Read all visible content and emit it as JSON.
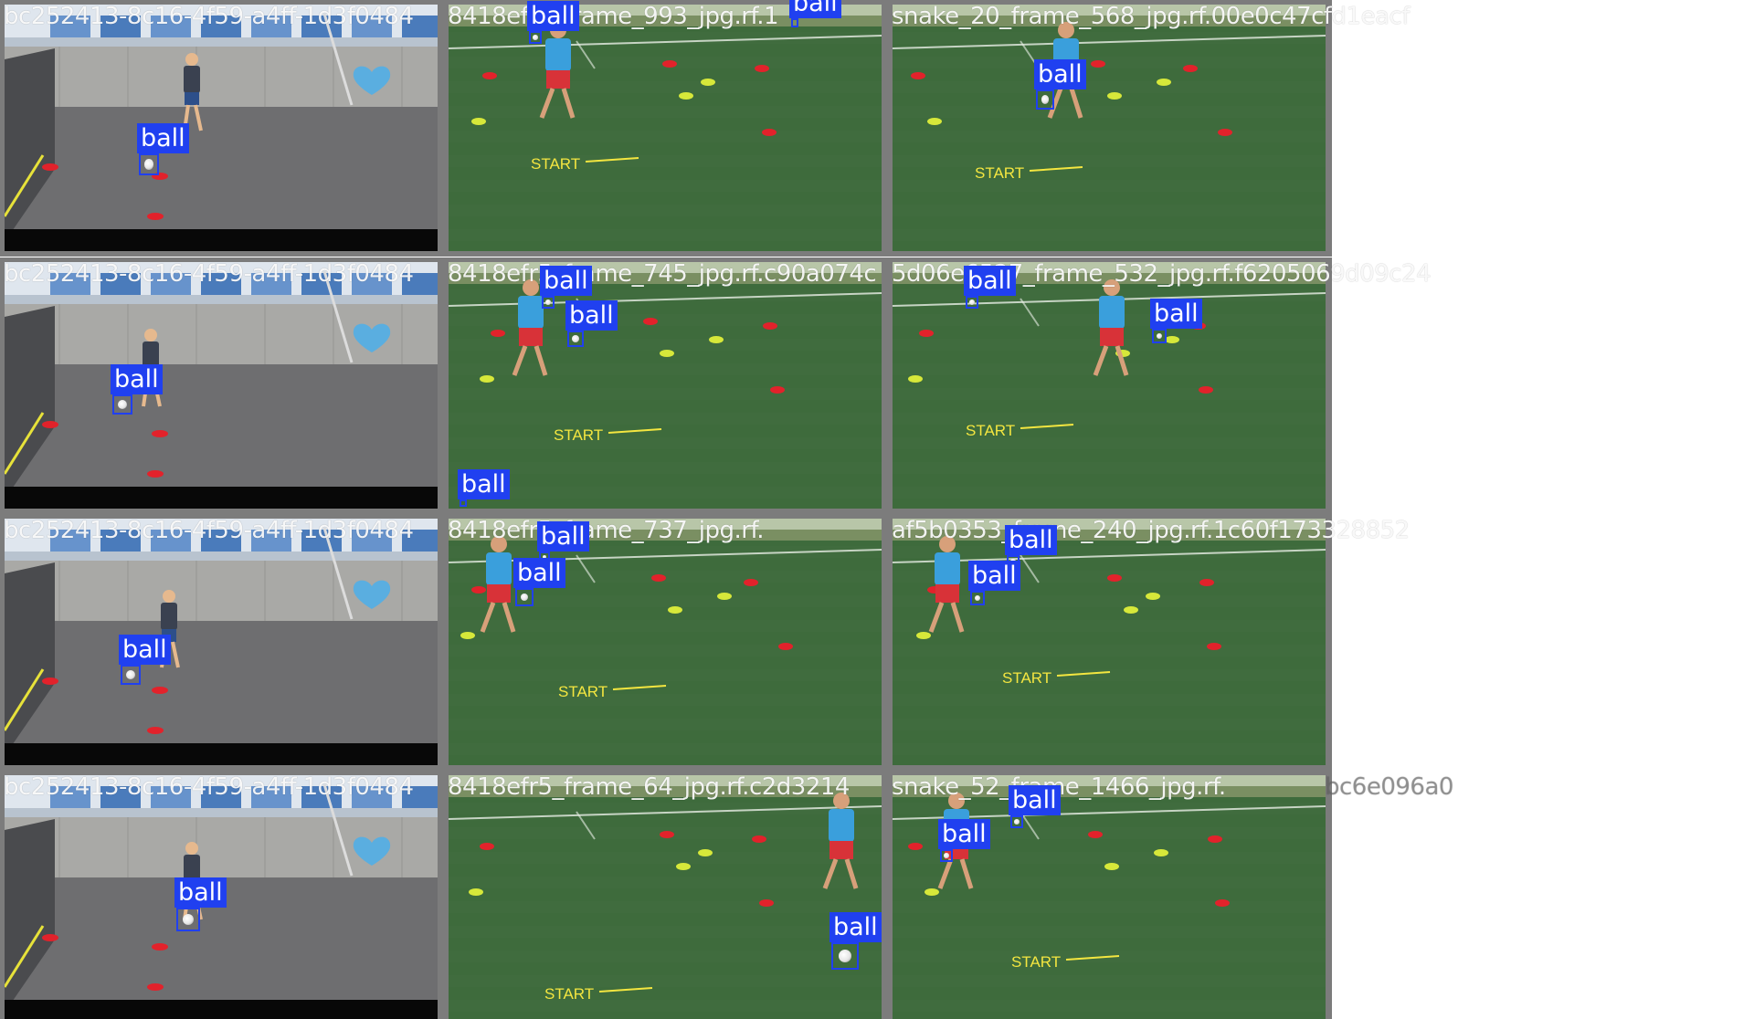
{
  "grid": {
    "columns": 3,
    "rows": 4
  },
  "scene_types": {
    "wall": "courtyard-wall-scene",
    "field": "training-field-scene"
  },
  "colors": {
    "box": "#2040f0",
    "label_bg": "#2040f0",
    "label_text": "#ffffff",
    "caption_text": "#ffffff",
    "tile_border": "#7c7c7c",
    "turf": "#3e6b3c",
    "asphalt": "#6e6e70",
    "cone_red": "#e2222b",
    "cone_yellow": "#d7e83a",
    "start_text": "#f4e640"
  },
  "tiles": [
    {
      "row": 0,
      "col": 0,
      "scene": "wall",
      "caption": "bc252413-8c16-4f59-a4ff-1d3f0484",
      "detections": [
        {
          "label": "ball"
        }
      ]
    },
    {
      "row": 0,
      "col": 1,
      "scene": "field",
      "start_text": "START",
      "caption": "8418efr5_frame_993_jpg.rf.1",
      "detections": [
        {
          "label": "ball"
        },
        {
          "label": "ball"
        }
      ]
    },
    {
      "row": 0,
      "col": 2,
      "scene": "field",
      "start_text": "START",
      "caption": "snake_20_frame_568_jpg.rf.00e0c47cfd1eacf",
      "detections": [
        {
          "label": "ball"
        }
      ]
    },
    {
      "row": 1,
      "col": 0,
      "scene": "wall",
      "caption": "bc252413-8c16-4f59-a4ff-1d3f0484",
      "detections": [
        {
          "label": "ball"
        }
      ]
    },
    {
      "row": 1,
      "col": 1,
      "scene": "field",
      "start_text": "START",
      "caption": "8418efr5_frame_745_jpg.rf.c90a074c",
      "detections": [
        {
          "label": "ball"
        },
        {
          "label": "ball"
        },
        {
          "label": "ball"
        }
      ]
    },
    {
      "row": 1,
      "col": 2,
      "scene": "field",
      "start_text": "START",
      "caption": "5d06e6527_frame_532_jpg.rf.f6205069d09c24",
      "detections": [
        {
          "label": "ball"
        },
        {
          "label": "ball"
        }
      ]
    },
    {
      "row": 2,
      "col": 0,
      "scene": "wall",
      "caption": "bc252413-8c16-4f59-a4ff-1d3f0484",
      "detections": [
        {
          "label": "ball"
        }
      ]
    },
    {
      "row": 2,
      "col": 1,
      "scene": "field",
      "start_text": "START",
      "caption": "8418efr5_frame_737_jpg.rf.",
      "detections": [
        {
          "label": "ball"
        },
        {
          "label": "ball"
        }
      ]
    },
    {
      "row": 2,
      "col": 2,
      "scene": "field",
      "start_text": "START",
      "caption": "af5b0353_frame_240_jpg.rf.1c60f173328852",
      "detections": [
        {
          "label": "ball"
        },
        {
          "label": "ball"
        }
      ]
    },
    {
      "row": 3,
      "col": 0,
      "scene": "wall",
      "caption": "bc252413-8c16-4f59-a4ff-1d3f0484",
      "detections": [
        {
          "label": "ball"
        }
      ]
    },
    {
      "row": 3,
      "col": 1,
      "scene": "field",
      "start_text": "START",
      "caption": "8418efr5_frame_64_jpg.rf.c2d3214",
      "detections": [
        {
          "label": "ball"
        }
      ]
    },
    {
      "row": 3,
      "col": 2,
      "scene": "field",
      "start_text": "START",
      "caption": "snake_52_frame_1466_jpg.rf.",
      "trailing_caption": "bc6e096a0",
      "detections": [
        {
          "label": "ball"
        },
        {
          "label": "ball"
        }
      ]
    }
  ]
}
